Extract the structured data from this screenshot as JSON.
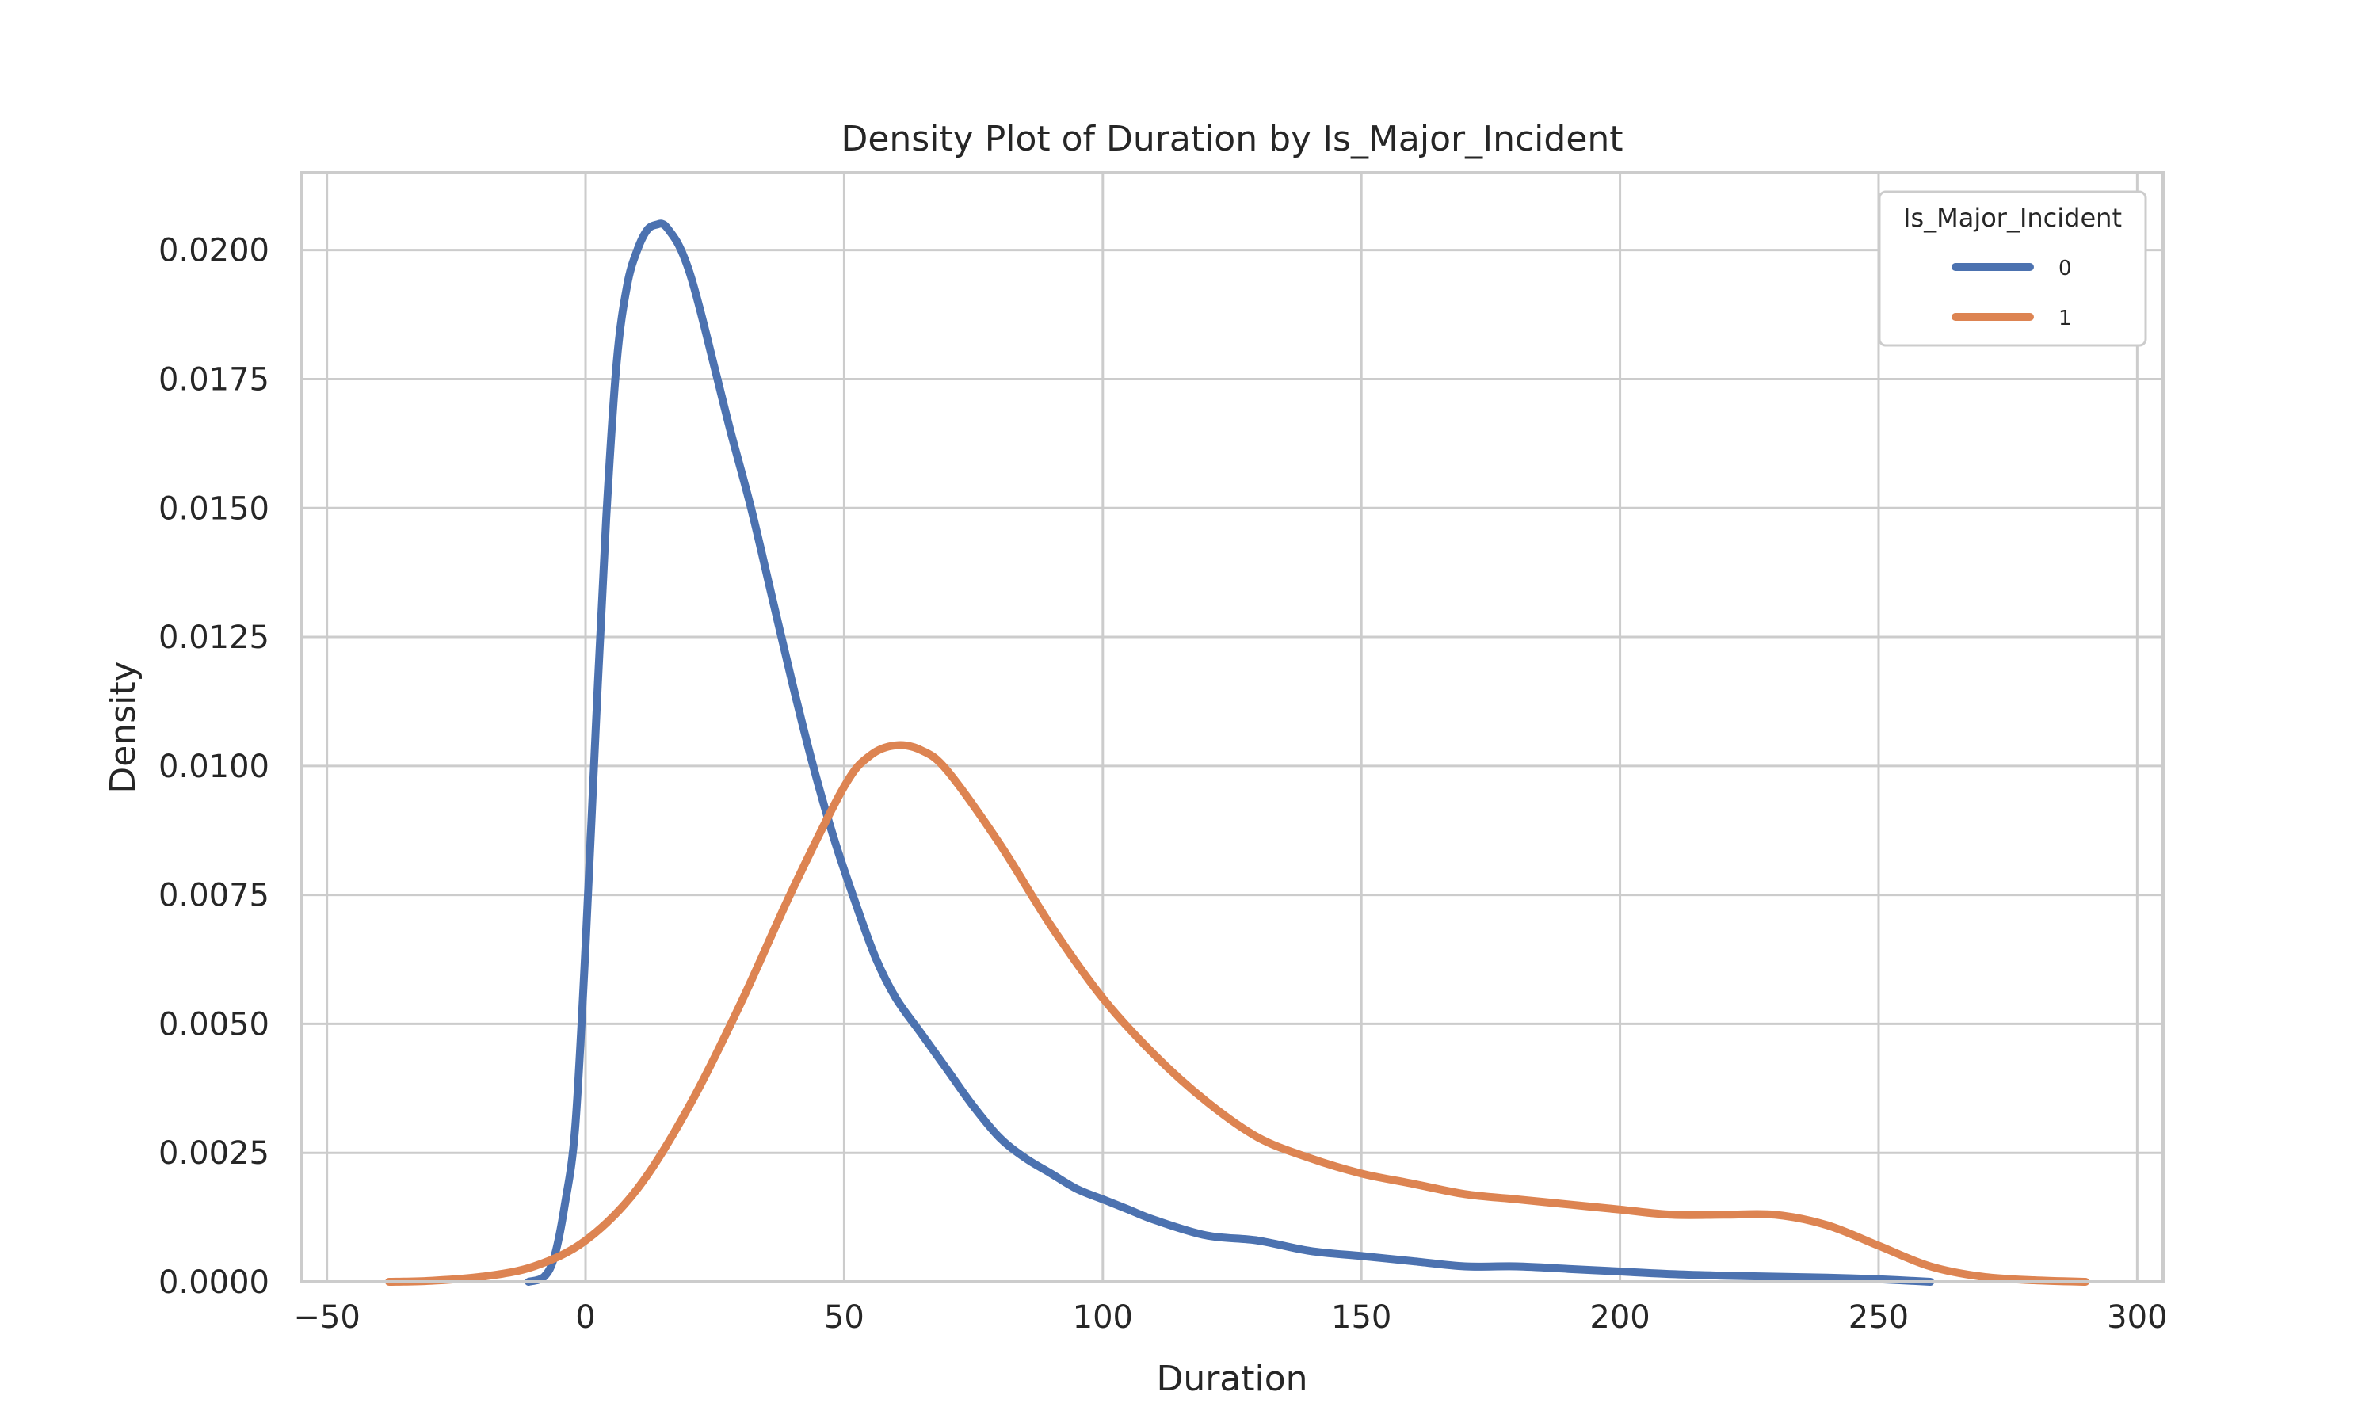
{
  "chart_data": {
    "type": "line",
    "title": "Density Plot of Duration by Is_Major_Incident",
    "xlabel": "Duration",
    "ylabel": "Density",
    "xlim": [
      -55,
      305
    ],
    "ylim": [
      0,
      0.0215
    ],
    "x_ticks": [
      -50,
      0,
      50,
      100,
      150,
      200,
      250,
      300
    ],
    "x_tick_labels": [
      "−50",
      "0",
      "50",
      "100",
      "150",
      "200",
      "250",
      "300"
    ],
    "y_ticks": [
      0,
      0.0025,
      0.005,
      0.0075,
      0.01,
      0.0125,
      0.015,
      0.0175,
      0.02
    ],
    "y_tick_labels": [
      "0.0000",
      "0.0025",
      "0.0050",
      "0.0075",
      "0.0100",
      "0.0125",
      "0.0150",
      "0.0175",
      "0.0200"
    ],
    "grid": true,
    "legend": {
      "title": "Is_Major_Incident",
      "placement": "top-right"
    },
    "series": [
      {
        "name": "0",
        "color": "#4c72b0",
        "x": [
          -11,
          -8,
          -6,
          -4,
          -2,
          0,
          2,
          4,
          6,
          8,
          10,
          12,
          14,
          15,
          16,
          18,
          20,
          22,
          25,
          28,
          32,
          36,
          40,
          44,
          48,
          52,
          56,
          60,
          65,
          70,
          75,
          80,
          85,
          90,
          95,
          100,
          105,
          110,
          120,
          130,
          140,
          150,
          160,
          170,
          180,
          190,
          200,
          210,
          220,
          230,
          240,
          250,
          260
        ],
        "y": [
          0,
          0.0001,
          0.0005,
          0.0015,
          0.003,
          0.0065,
          0.0108,
          0.0148,
          0.0178,
          0.0193,
          0.02,
          0.0204,
          0.0205,
          0.0205,
          0.0204,
          0.0201,
          0.0196,
          0.0189,
          0.0177,
          0.0165,
          0.015,
          0.0133,
          0.0116,
          0.01,
          0.0086,
          0.0074,
          0.0063,
          0.0055,
          0.0048,
          0.0041,
          0.0034,
          0.0028,
          0.0024,
          0.0021,
          0.0018,
          0.0016,
          0.0014,
          0.0012,
          0.0009,
          0.0008,
          0.0006,
          0.0005,
          0.0004,
          0.0003,
          0.0003,
          0.00025,
          0.0002,
          0.00015,
          0.00012,
          0.0001,
          8e-05,
          5e-05,
          0
        ]
      },
      {
        "name": "1",
        "color": "#dd8452",
        "x": [
          -38,
          -30,
          -20,
          -10,
          0,
          10,
          20,
          30,
          40,
          50,
          55,
          60,
          65,
          70,
          80,
          90,
          100,
          110,
          120,
          130,
          140,
          150,
          160,
          170,
          180,
          190,
          200,
          210,
          220,
          230,
          240,
          250,
          260,
          270,
          280,
          290
        ],
        "y": [
          0,
          2e-05,
          0.0001,
          0.0003,
          0.0008,
          0.0018,
          0.0034,
          0.0054,
          0.0076,
          0.0096,
          0.0102,
          0.0104,
          0.0103,
          0.0099,
          0.0085,
          0.0069,
          0.0055,
          0.0044,
          0.0035,
          0.0028,
          0.0024,
          0.0021,
          0.0019,
          0.0017,
          0.0016,
          0.0015,
          0.0014,
          0.0013,
          0.0013,
          0.0013,
          0.0011,
          0.0007,
          0.0003,
          0.0001,
          3e-05,
          0
        ]
      }
    ]
  }
}
